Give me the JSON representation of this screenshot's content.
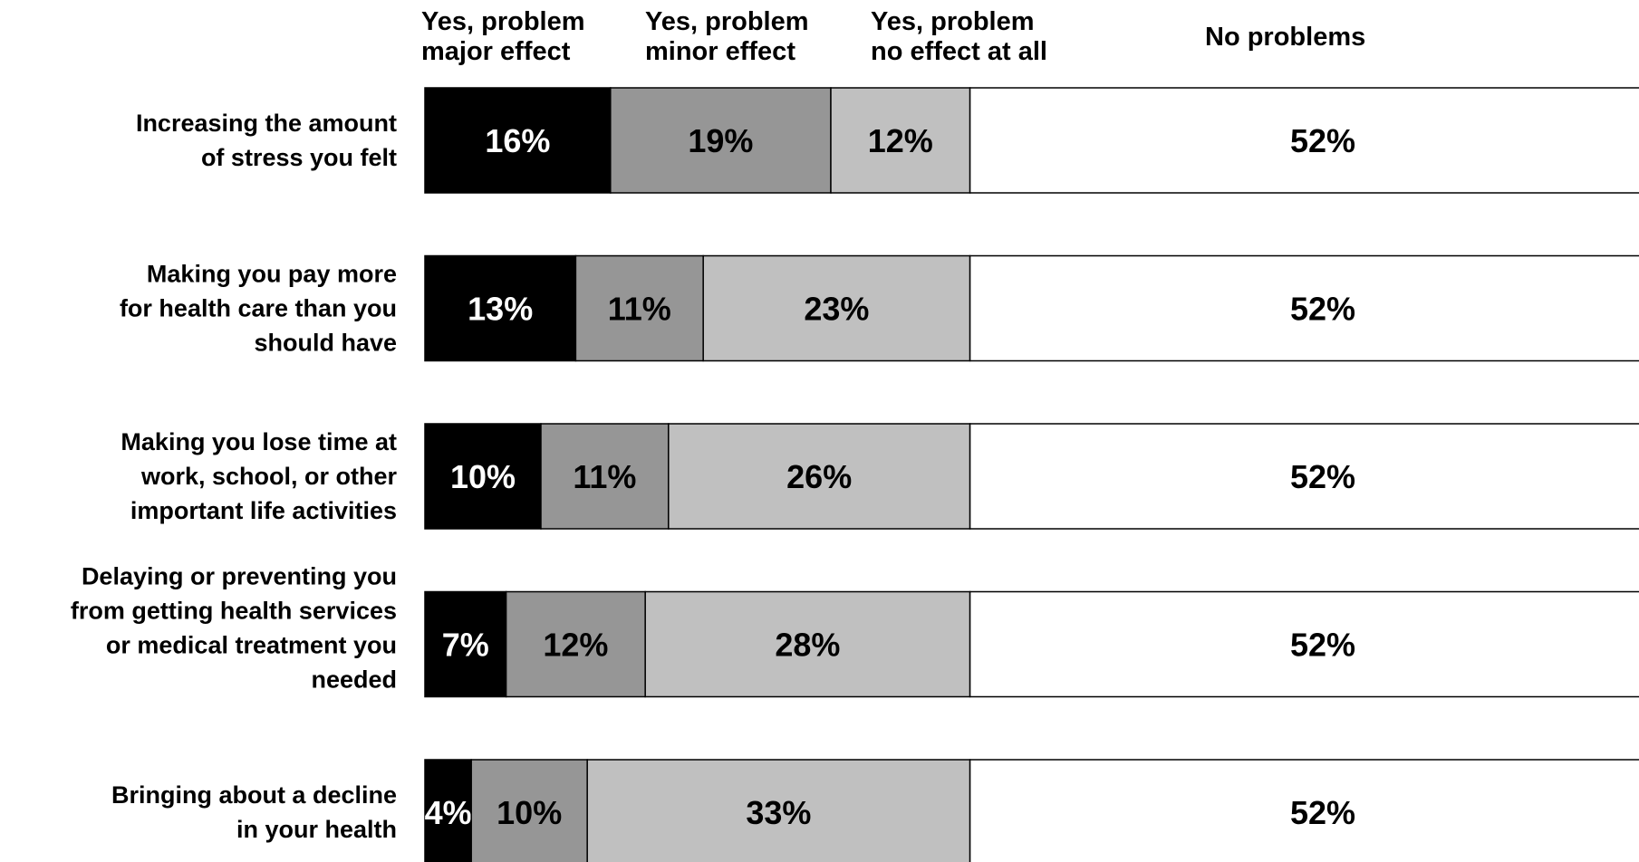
{
  "chart_data": {
    "type": "bar",
    "orientation": "horizontal",
    "stacked": true,
    "xlim": [
      0,
      100
    ],
    "categories": [
      [
        "Increasing the amount",
        "of stress you felt"
      ],
      [
        "Making you pay more",
        "for health care than you",
        "should have"
      ],
      [
        "Making you lose time at",
        "work, school, or other",
        "important life activities"
      ],
      [
        "Delaying or preventing you",
        "from getting health services",
        "or medical treatment you",
        "needed"
      ],
      [
        "Bringing about a decline",
        "in your health"
      ]
    ],
    "series": [
      {
        "name": [
          "Yes, problem",
          "major effect"
        ],
        "color": "#000000",
        "label_color": "#ffffff",
        "values": [
          16,
          13,
          10,
          7,
          4
        ],
        "labels": [
          "16%",
          "13%",
          "10%",
          "7%",
          "4%"
        ]
      },
      {
        "name": [
          "Yes, problem",
          "minor effect"
        ],
        "color": "#969696",
        "label_color": "#000000",
        "values": [
          19,
          11,
          11,
          12,
          10
        ],
        "labels": [
          "19%",
          "11%",
          "11%",
          "12%",
          "10%"
        ]
      },
      {
        "name": [
          "Yes, problem",
          "no effect at all"
        ],
        "color": "#c0c0c0",
        "label_color": "#000000",
        "values": [
          12,
          23,
          26,
          28,
          33
        ],
        "labels": [
          "12%",
          "23%",
          "26%",
          "28%",
          "33%"
        ]
      },
      {
        "name": [
          "No problems"
        ],
        "color": "#ffffff",
        "label_color": "#000000",
        "values": [
          52,
          52,
          52,
          52,
          52
        ],
        "labels": [
          "52%",
          "52%",
          "52%",
          "52%",
          "52%"
        ]
      }
    ],
    "grid": false,
    "legend_position": "top"
  }
}
